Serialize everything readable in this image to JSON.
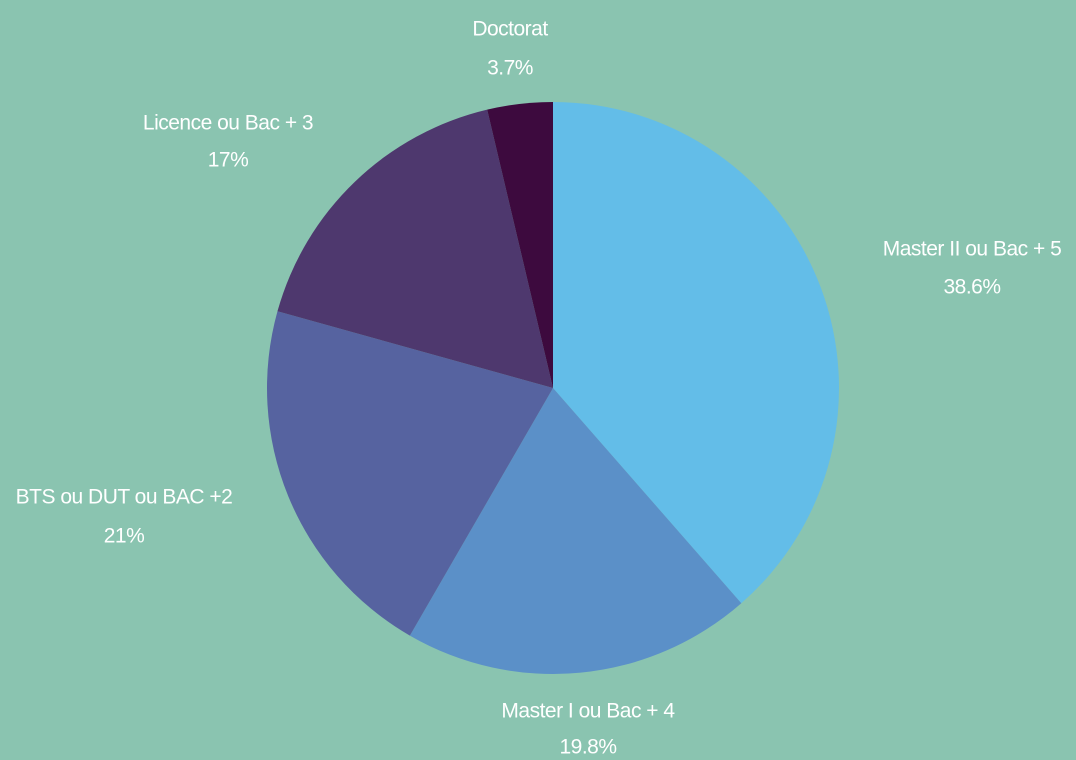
{
  "chart_data": {
    "type": "pie",
    "categories": [
      "Master II ou Bac + 5",
      "Master I ou Bac + 4",
      "BTS ou DUT ou BAC +2",
      "Licence ou Bac + 3",
      "Doctorat"
    ],
    "values": [
      38.6,
      19.8,
      21,
      17,
      3.7
    ],
    "value_labels": [
      "38.6%",
      "19.8%",
      "21%",
      "17%",
      "3.7%"
    ],
    "colors": [
      "#63bde8",
      "#5b90c8",
      "#5663a0",
      "#4e386e",
      "#3d0a3e"
    ]
  }
}
